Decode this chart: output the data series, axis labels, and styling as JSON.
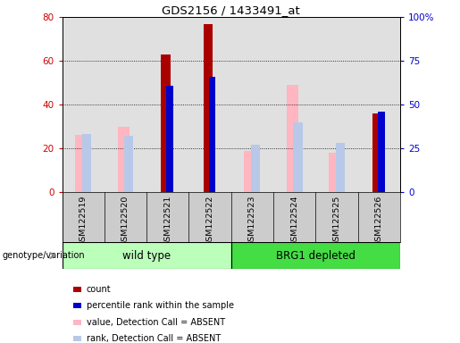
{
  "title": "GDS2156 / 1433491_at",
  "samples": [
    "GSM122519",
    "GSM122520",
    "GSM122521",
    "GSM122522",
    "GSM122523",
    "GSM122524",
    "GSM122525",
    "GSM122526"
  ],
  "count_values": [
    null,
    null,
    63,
    77,
    null,
    null,
    null,
    36
  ],
  "percentile_rank": [
    null,
    null,
    61,
    66,
    null,
    null,
    null,
    46
  ],
  "absent_value": [
    26,
    30,
    null,
    null,
    19,
    49,
    18,
    null
  ],
  "absent_rank": [
    33,
    32,
    null,
    null,
    27,
    40,
    28,
    null
  ],
  "ylim_left": [
    0,
    80
  ],
  "ylim_right": [
    0,
    100
  ],
  "yticks_left": [
    0,
    20,
    40,
    60,
    80
  ],
  "yticks_right": [
    0,
    25,
    50,
    75,
    100
  ],
  "ytick_labels_right": [
    "0",
    "25",
    "50",
    "75",
    "100%"
  ],
  "color_count": "#AA0000",
  "color_percentile": "#0000CC",
  "color_absent_value": "#FFB6C1",
  "color_absent_rank": "#B8C8E8",
  "group1_label": "wild type",
  "group2_label": "BRG1 depleted",
  "group1_color": "#BBFFBB",
  "group2_color": "#44DD44",
  "left_tick_color": "#CC0000",
  "right_tick_color": "#0000CC",
  "bg_plot": "#E0E0E0",
  "bg_xlabels": "#CCCCCC",
  "legend_items": [
    {
      "color": "#AA0000",
      "label": "count"
    },
    {
      "color": "#0000CC",
      "label": "percentile rank within the sample"
    },
    {
      "color": "#FFB6C1",
      "label": "value, Detection Call = ABSENT"
    },
    {
      "color": "#B8C8E8",
      "label": "rank, Detection Call = ABSENT"
    }
  ]
}
